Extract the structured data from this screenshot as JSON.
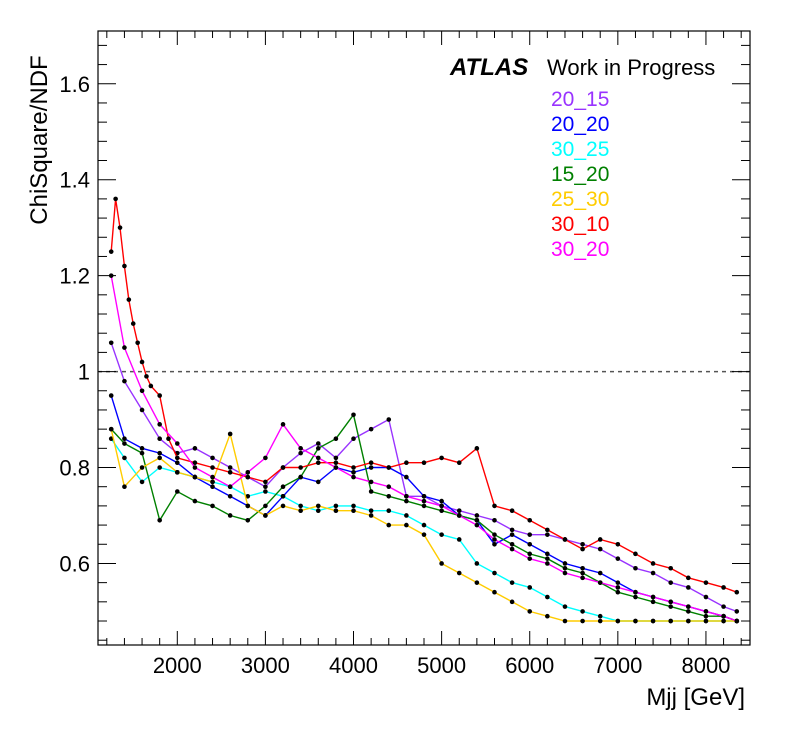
{
  "chart_data": {
    "type": "line",
    "xlabel": "Mjj [GeV]",
    "ylabel": "ChiSquare/NDF",
    "xlim": [
      1100,
      8500
    ],
    "ylim": [
      0.43,
      1.71
    ],
    "x_ticks": [
      2000,
      3000,
      4000,
      5000,
      6000,
      7000,
      8000
    ],
    "y_ticks": [
      0.6,
      0.8,
      1,
      1.2,
      1.4,
      1.6
    ],
    "x_tick_labels": [
      "2000",
      "3000",
      "4000",
      "5000",
      "6000",
      "7000",
      "8000"
    ],
    "y_tick_labels": [
      "0.6",
      "0.8",
      "1",
      "1.2",
      "1.4",
      "1.6"
    ],
    "reference_line": {
      "y": 1,
      "style": "dashed"
    },
    "atlas_label": "ATLAS",
    "atlas_sublabel": "Work in Progress",
    "legend_position": "top-right",
    "grid": false,
    "series": [
      {
        "name": "20_15",
        "color": "#9933ff",
        "x": [
          1250,
          1400,
          1600,
          1800,
          2000,
          2200,
          2400,
          2600,
          2800,
          3000,
          3200,
          3400,
          3600,
          3800,
          4000,
          4200,
          4400,
          4600,
          4800,
          5000,
          5200,
          5400,
          5600,
          5800,
          6000,
          6200,
          6400,
          6600,
          6800,
          7000,
          7200,
          7400,
          7600,
          7800,
          8000,
          8200,
          8350
        ],
        "y": [
          1.06,
          0.98,
          0.92,
          0.86,
          0.83,
          0.84,
          0.82,
          0.8,
          0.78,
          0.76,
          0.8,
          0.83,
          0.85,
          0.82,
          0.86,
          0.88,
          0.9,
          0.74,
          0.74,
          0.72,
          0.71,
          0.7,
          0.69,
          0.67,
          0.66,
          0.66,
          0.65,
          0.64,
          0.63,
          0.61,
          0.59,
          0.58,
          0.56,
          0.55,
          0.53,
          0.51,
          0.5
        ]
      },
      {
        "name": "20_20",
        "color": "#0000ff",
        "x": [
          1250,
          1400,
          1600,
          1800,
          2000,
          2200,
          2400,
          2600,
          2800,
          3000,
          3200,
          3400,
          3600,
          3800,
          4000,
          4200,
          4400,
          4600,
          4800,
          5000,
          5200,
          5400,
          5600,
          5800,
          6000,
          6200,
          6400,
          6600,
          6800,
          7000,
          7200,
          7400,
          7600,
          7800,
          8000,
          8200,
          8350
        ],
        "y": [
          0.95,
          0.86,
          0.84,
          0.83,
          0.81,
          0.78,
          0.76,
          0.74,
          0.72,
          0.7,
          0.74,
          0.78,
          0.77,
          0.8,
          0.79,
          0.8,
          0.8,
          0.78,
          0.74,
          0.73,
          0.7,
          0.69,
          0.64,
          0.66,
          0.64,
          0.62,
          0.6,
          0.59,
          0.58,
          0.56,
          0.54,
          0.53,
          0.52,
          0.51,
          0.5,
          0.49,
          0.48
        ]
      },
      {
        "name": "30_25",
        "color": "#00ffff",
        "x": [
          1250,
          1400,
          1600,
          1800,
          2000,
          2200,
          2400,
          2600,
          2800,
          3000,
          3200,
          3400,
          3600,
          3800,
          4000,
          4200,
          4400,
          4600,
          4800,
          5000,
          5200,
          5400,
          5600,
          5800,
          6000,
          6200,
          6400,
          6600,
          6800,
          7000,
          7200,
          7400,
          7600,
          7800,
          8000,
          8200,
          8350
        ],
        "y": [
          0.86,
          0.82,
          0.77,
          0.8,
          0.79,
          0.78,
          0.77,
          0.76,
          0.74,
          0.75,
          0.74,
          0.72,
          0.71,
          0.72,
          0.72,
          0.71,
          0.71,
          0.7,
          0.68,
          0.66,
          0.65,
          0.6,
          0.58,
          0.56,
          0.55,
          0.53,
          0.51,
          0.5,
          0.49,
          0.48,
          0.48,
          0.48,
          0.48,
          0.48,
          0.48,
          0.48,
          0.48
        ]
      },
      {
        "name": "15_20",
        "color": "#008000",
        "x": [
          1250,
          1400,
          1600,
          1800,
          2000,
          2200,
          2400,
          2600,
          2800,
          3000,
          3200,
          3400,
          3600,
          3800,
          4000,
          4200,
          4400,
          4600,
          4800,
          5000,
          5200,
          5400,
          5600,
          5800,
          6000,
          6200,
          6400,
          6600,
          6800,
          7000,
          7200,
          7400,
          7600,
          7800,
          8000,
          8200,
          8350
        ],
        "y": [
          0.88,
          0.85,
          0.83,
          0.69,
          0.75,
          0.73,
          0.72,
          0.7,
          0.69,
          0.72,
          0.76,
          0.78,
          0.84,
          0.86,
          0.91,
          0.75,
          0.74,
          0.73,
          0.72,
          0.71,
          0.7,
          0.69,
          0.66,
          0.64,
          0.62,
          0.61,
          0.59,
          0.58,
          0.56,
          0.54,
          0.53,
          0.52,
          0.51,
          0.5,
          0.49,
          0.49,
          0.48
        ]
      },
      {
        "name": "25_30",
        "color": "#ffcc00",
        "x": [
          1250,
          1400,
          1600,
          1800,
          2000,
          2200,
          2400,
          2600,
          2800,
          3000,
          3200,
          3400,
          3600,
          3800,
          4000,
          4200,
          4400,
          4600,
          4800,
          5000,
          5200,
          5400,
          5600,
          5800,
          6000,
          6200,
          6400,
          6600,
          6800,
          7000,
          7200,
          7400,
          7600,
          7800,
          8000,
          8200,
          8350
        ],
        "y": [
          0.88,
          0.76,
          0.8,
          0.82,
          0.79,
          0.78,
          0.77,
          0.87,
          0.72,
          0.7,
          0.72,
          0.71,
          0.72,
          0.71,
          0.71,
          0.7,
          0.68,
          0.68,
          0.66,
          0.6,
          0.58,
          0.56,
          0.54,
          0.52,
          0.5,
          0.49,
          0.48,
          0.48,
          0.48,
          0.48,
          0.48,
          0.48,
          0.48,
          0.48,
          0.48,
          0.48,
          0.48
        ]
      },
      {
        "name": "30_10",
        "color": "#ff0000",
        "x": [
          1250,
          1300,
          1350,
          1400,
          1450,
          1500,
          1550,
          1600,
          1650,
          1700,
          1800,
          1900,
          2000,
          2200,
          2400,
          2600,
          2800,
          3000,
          3200,
          3400,
          3600,
          3800,
          4000,
          4200,
          4400,
          4600,
          4800,
          5000,
          5200,
          5400,
          5600,
          5800,
          6000,
          6200,
          6400,
          6600,
          6800,
          7000,
          7200,
          7400,
          7600,
          7800,
          8000,
          8200,
          8350
        ],
        "y": [
          1.25,
          1.36,
          1.3,
          1.22,
          1.15,
          1.1,
          1.06,
          1.02,
          0.99,
          0.97,
          0.95,
          0.86,
          0.82,
          0.81,
          0.8,
          0.79,
          0.78,
          0.77,
          0.8,
          0.8,
          0.81,
          0.81,
          0.8,
          0.81,
          0.8,
          0.81,
          0.81,
          0.82,
          0.81,
          0.84,
          0.72,
          0.71,
          0.69,
          0.67,
          0.65,
          0.63,
          0.65,
          0.64,
          0.62,
          0.6,
          0.59,
          0.57,
          0.56,
          0.55,
          0.54
        ]
      },
      {
        "name": "30_20",
        "color": "#ff00ff",
        "x": [
          1250,
          1400,
          1600,
          1800,
          2000,
          2200,
          2400,
          2600,
          2800,
          3000,
          3200,
          3400,
          3600,
          3800,
          4000,
          4200,
          4400,
          4600,
          4800,
          5000,
          5200,
          5400,
          5600,
          5800,
          6000,
          6200,
          6400,
          6600,
          6800,
          7000,
          7200,
          7400,
          7600,
          7800,
          8000,
          8200,
          8350
        ],
        "y": [
          1.2,
          1.05,
          0.96,
          0.89,
          0.85,
          0.8,
          0.78,
          0.76,
          0.79,
          0.82,
          0.89,
          0.84,
          0.82,
          0.8,
          0.78,
          0.77,
          0.76,
          0.74,
          0.73,
          0.72,
          0.7,
          0.68,
          0.65,
          0.63,
          0.61,
          0.6,
          0.58,
          0.57,
          0.56,
          0.55,
          0.54,
          0.53,
          0.52,
          0.51,
          0.5,
          0.49,
          0.48
        ]
      }
    ]
  }
}
